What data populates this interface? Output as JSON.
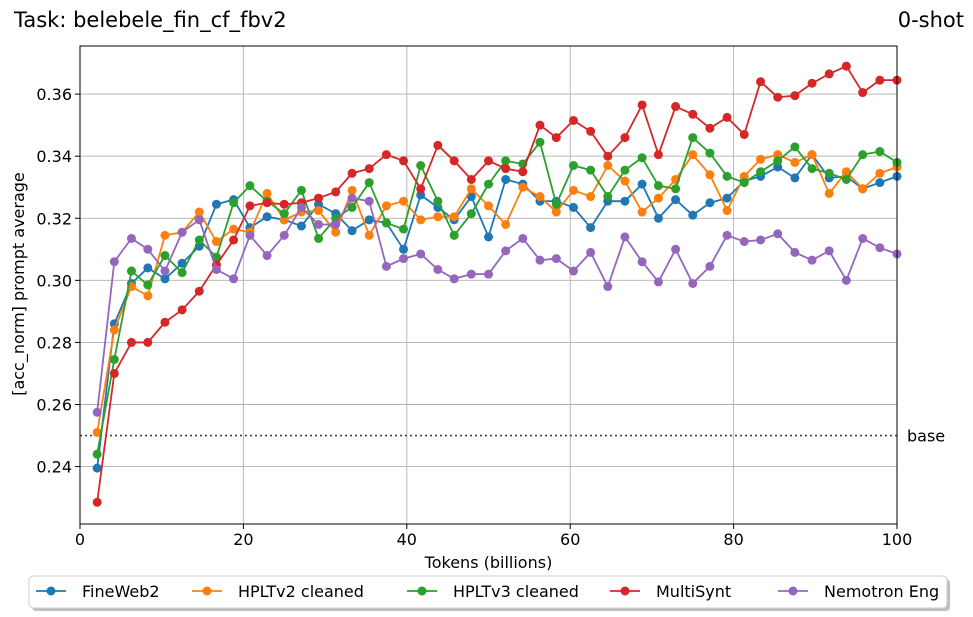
{
  "chart_data": {
    "type": "line",
    "title": "Task: belebele_fin_cf_fbv2",
    "subtitle": "0-shot",
    "xlabel": "Tokens (billions)",
    "ylabel": "[acc_norm] prompt average",
    "xlim": [
      0,
      100
    ],
    "ylim": [
      0.2215,
      0.3755
    ],
    "xticks": [
      0,
      20,
      40,
      60,
      80,
      100
    ],
    "yticks": [
      0.24,
      0.26,
      0.28,
      0.3,
      0.32,
      0.34,
      0.36
    ],
    "ytick_labels": [
      "0.24",
      "0.26",
      "0.28",
      "0.30",
      "0.32",
      "0.34",
      "0.36"
    ],
    "grid": true,
    "legend_position": "bottom-center",
    "baseline": {
      "value": 0.25,
      "label": "base"
    },
    "x": [
      2.1,
      4.2,
      6.3,
      8.3,
      10.4,
      12.5,
      14.6,
      16.7,
      18.8,
      20.8,
      22.9,
      25.0,
      27.1,
      29.2,
      31.3,
      33.3,
      35.4,
      37.5,
      39.6,
      41.7,
      43.8,
      45.8,
      47.9,
      50.0,
      52.1,
      54.2,
      56.3,
      58.3,
      60.4,
      62.5,
      64.6,
      66.7,
      68.8,
      70.8,
      72.9,
      75.0,
      77.1,
      79.2,
      81.3,
      83.3,
      85.4,
      87.5,
      89.6,
      91.7,
      93.8,
      95.8,
      97.9,
      100.0
    ],
    "series": [
      {
        "name": "FineWeb2",
        "color": "#1f77b4",
        "values": [
          0.2395,
          0.286,
          0.299,
          0.304,
          0.3005,
          0.3055,
          0.311,
          0.3245,
          0.326,
          0.317,
          0.3205,
          0.3195,
          0.3175,
          0.3245,
          0.3215,
          0.316,
          0.3195,
          0.3185,
          0.31,
          0.3275,
          0.3235,
          0.3195,
          0.327,
          0.314,
          0.3325,
          0.331,
          0.3255,
          0.3255,
          0.3235,
          0.317,
          0.3255,
          0.3255,
          0.331,
          0.32,
          0.326,
          0.321,
          0.325,
          0.3265,
          0.332,
          0.3335,
          0.3365,
          0.333,
          0.3405,
          0.333,
          0.3335,
          0.3295,
          0.3315,
          0.3335
        ]
      },
      {
        "name": "HPLTv2 cleaned",
        "color": "#ff7f0e",
        "values": [
          0.251,
          0.284,
          0.298,
          0.295,
          0.3145,
          0.3155,
          0.322,
          0.3125,
          0.3165,
          0.3155,
          0.328,
          0.3195,
          0.322,
          0.3225,
          0.3155,
          0.329,
          0.3145,
          0.324,
          0.3255,
          0.3195,
          0.3205,
          0.3205,
          0.3295,
          0.324,
          0.318,
          0.33,
          0.327,
          0.322,
          0.329,
          0.327,
          0.337,
          0.332,
          0.322,
          0.3265,
          0.3325,
          0.3405,
          0.334,
          0.3225,
          0.3335,
          0.339,
          0.3405,
          0.338,
          0.3405,
          0.328,
          0.335,
          0.3295,
          0.3345,
          0.3365
        ]
      },
      {
        "name": "HPLTv3 cleaned",
        "color": "#2ca02c",
        "values": [
          0.244,
          0.2745,
          0.303,
          0.2985,
          0.308,
          0.3025,
          0.313,
          0.3075,
          0.325,
          0.3305,
          0.3255,
          0.3215,
          0.329,
          0.3135,
          0.32,
          0.3235,
          0.3315,
          0.3185,
          0.3165,
          0.337,
          0.3255,
          0.3145,
          0.3215,
          0.331,
          0.3385,
          0.3375,
          0.3445,
          0.3245,
          0.337,
          0.3355,
          0.327,
          0.3355,
          0.3395,
          0.3305,
          0.3295,
          0.346,
          0.341,
          0.3335,
          0.3315,
          0.335,
          0.3385,
          0.343,
          0.336,
          0.3345,
          0.3325,
          0.3405,
          0.3415,
          0.338
        ]
      },
      {
        "name": "MultiSynt",
        "color": "#d62728",
        "values": [
          0.2285,
          0.27,
          0.28,
          0.28,
          0.2865,
          0.2905,
          0.2965,
          0.305,
          0.313,
          0.324,
          0.325,
          0.3245,
          0.325,
          0.3265,
          0.3285,
          0.3345,
          0.336,
          0.3405,
          0.3385,
          0.3295,
          0.3435,
          0.3385,
          0.3325,
          0.3385,
          0.336,
          0.335,
          0.35,
          0.346,
          0.3515,
          0.348,
          0.34,
          0.346,
          0.3565,
          0.3405,
          0.356,
          0.3535,
          0.349,
          0.3525,
          0.347,
          0.364,
          0.359,
          0.3595,
          0.3635,
          0.3665,
          0.369,
          0.3605,
          0.3645,
          0.3645
        ]
      },
      {
        "name": "Nemotron Eng",
        "color": "#9467bd",
        "values": [
          0.2575,
          0.306,
          0.3135,
          0.31,
          0.303,
          0.3155,
          0.3195,
          0.3035,
          0.3005,
          0.3145,
          0.308,
          0.3145,
          0.3235,
          0.318,
          0.318,
          0.3265,
          0.3255,
          0.3045,
          0.307,
          0.3085,
          0.3035,
          0.3005,
          0.302,
          0.302,
          0.3095,
          0.3135,
          0.3065,
          0.307,
          0.303,
          0.309,
          0.298,
          0.314,
          0.306,
          0.2995,
          0.31,
          0.299,
          0.3045,
          0.3145,
          0.3125,
          0.313,
          0.315,
          0.309,
          0.3065,
          0.3095,
          0.3,
          0.3135,
          0.3105,
          0.3085
        ]
      }
    ]
  }
}
